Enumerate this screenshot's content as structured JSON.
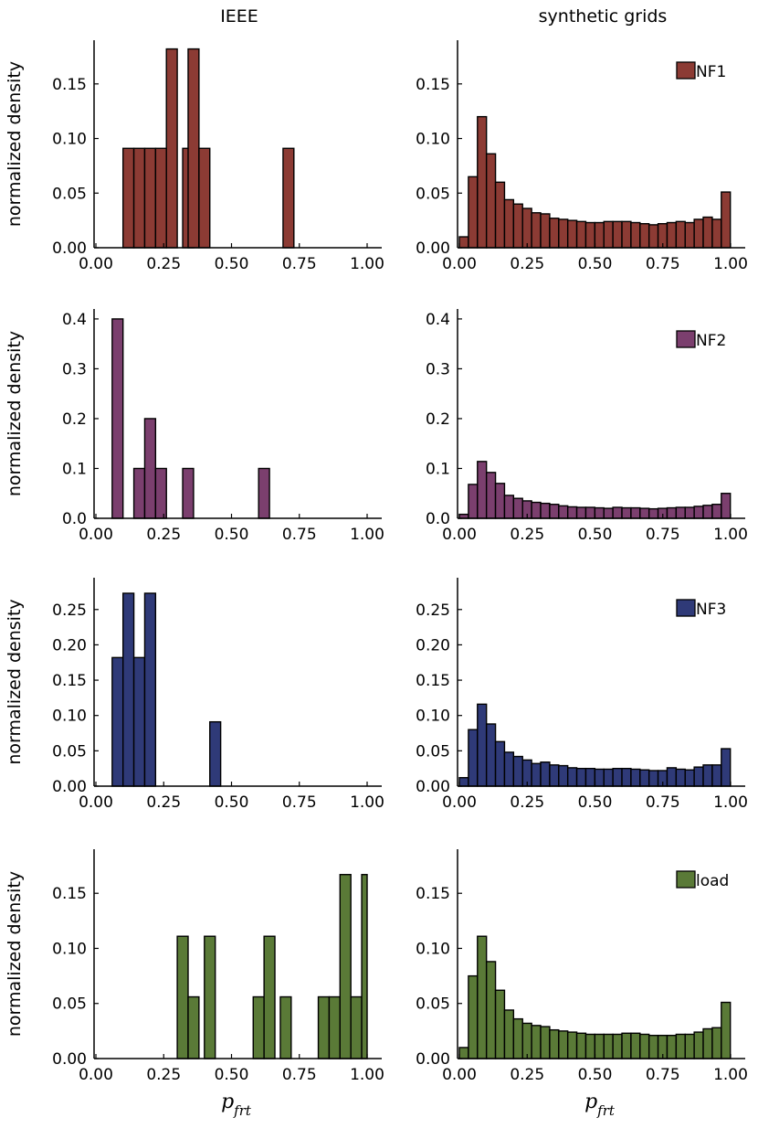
{
  "figure": {
    "column_titles": [
      "IEEE",
      "synthetic grids"
    ],
    "ylabel": "normalized density",
    "xlabel_main": "p",
    "xlabel_sub": "frt"
  },
  "chart_data": [
    {
      "type": "bar",
      "row": 0,
      "col": 0,
      "color": "#8c3b34",
      "xlim": [
        0,
        1
      ],
      "ylim": [
        0,
        0.19
      ],
      "xticks": [
        "0.00",
        "0.25",
        "0.50",
        "0.75",
        "1.00"
      ],
      "yticks": [
        "0.00",
        "0.05",
        "0.10",
        "0.15"
      ],
      "bin_width": 0.04,
      "bins": [
        [
          0.1,
          0.091
        ],
        [
          0.14,
          0.091
        ],
        [
          0.18,
          0.091
        ],
        [
          0.22,
          0.091
        ],
        [
          0.26,
          0.182
        ],
        [
          0.3,
          0
        ],
        [
          0.32,
          0.091
        ],
        [
          0.34,
          0.182
        ],
        [
          0.38,
          0.091
        ],
        [
          0.69,
          0.091
        ]
      ],
      "legend": ""
    },
    {
      "type": "bar",
      "row": 0,
      "col": 1,
      "color": "#8c3b34",
      "xlim": [
        0,
        1
      ],
      "ylim": [
        0,
        0.19
      ],
      "xticks": [
        "0.00",
        "0.25",
        "0.50",
        "0.75",
        "1.00"
      ],
      "yticks": [
        "0.00",
        "0.05",
        "0.10",
        "0.15"
      ],
      "bin_width": 0.0333,
      "values": [
        0.01,
        0.065,
        0.12,
        0.086,
        0.06,
        0.044,
        0.04,
        0.036,
        0.032,
        0.031,
        0.027,
        0.026,
        0.025,
        0.024,
        0.023,
        0.023,
        0.024,
        0.024,
        0.024,
        0.023,
        0.022,
        0.021,
        0.022,
        0.023,
        0.024,
        0.023,
        0.026,
        0.028,
        0.026,
        0.051
      ],
      "legend": "NF1"
    },
    {
      "type": "bar",
      "row": 1,
      "col": 0,
      "color": "#7b3f6e",
      "xlim": [
        0,
        1
      ],
      "ylim": [
        0,
        0.42
      ],
      "xticks": [
        "0.00",
        "0.25",
        "0.50",
        "0.75",
        "1.00"
      ],
      "yticks": [
        "0.0",
        "0.1",
        "0.2",
        "0.3",
        "0.4"
      ],
      "bin_width": 0.04,
      "bins": [
        [
          0.06,
          0.4
        ],
        [
          0.14,
          0.1
        ],
        [
          0.18,
          0.2
        ],
        [
          0.22,
          0.1
        ],
        [
          0.32,
          0.1
        ],
        [
          0.6,
          0.1
        ]
      ],
      "legend": ""
    },
    {
      "type": "bar",
      "row": 1,
      "col": 1,
      "color": "#7b3f6e",
      "xlim": [
        0,
        1
      ],
      "ylim": [
        0,
        0.42
      ],
      "xticks": [
        "0.00",
        "0.25",
        "0.50",
        "0.75",
        "1.00"
      ],
      "yticks": [
        "0.0",
        "0.1",
        "0.2",
        "0.3",
        "0.4"
      ],
      "bin_width": 0.0333,
      "values": [
        0.008,
        0.068,
        0.114,
        0.092,
        0.07,
        0.046,
        0.04,
        0.035,
        0.032,
        0.03,
        0.028,
        0.025,
        0.023,
        0.022,
        0.022,
        0.021,
        0.02,
        0.022,
        0.021,
        0.021,
        0.02,
        0.019,
        0.02,
        0.021,
        0.022,
        0.022,
        0.024,
        0.026,
        0.028,
        0.05
      ],
      "legend": "NF2"
    },
    {
      "type": "bar",
      "row": 2,
      "col": 0,
      "color": "#2f3a78",
      "xlim": [
        0,
        1
      ],
      "ylim": [
        0,
        0.295
      ],
      "xticks": [
        "0.00",
        "0.25",
        "0.50",
        "0.75",
        "1.00"
      ],
      "yticks": [
        "0.00",
        "0.05",
        "0.10",
        "0.15",
        "0.20",
        "0.25"
      ],
      "bin_width": 0.04,
      "bins": [
        [
          0.06,
          0.182
        ],
        [
          0.1,
          0.273
        ],
        [
          0.14,
          0.182
        ],
        [
          0.18,
          0.273
        ],
        [
          0.42,
          0.091
        ]
      ],
      "legend": ""
    },
    {
      "type": "bar",
      "row": 2,
      "col": 1,
      "color": "#2f3a78",
      "xlim": [
        0,
        1
      ],
      "ylim": [
        0,
        0.295
      ],
      "xticks": [
        "0.00",
        "0.25",
        "0.50",
        "0.75",
        "1.00"
      ],
      "yticks": [
        "0.00",
        "0.05",
        "0.10",
        "0.15",
        "0.20",
        "0.25"
      ],
      "bin_width": 0.0333,
      "values": [
        0.012,
        0.08,
        0.116,
        0.088,
        0.063,
        0.048,
        0.042,
        0.037,
        0.032,
        0.034,
        0.03,
        0.029,
        0.026,
        0.025,
        0.025,
        0.024,
        0.024,
        0.025,
        0.025,
        0.024,
        0.023,
        0.022,
        0.022,
        0.026,
        0.024,
        0.023,
        0.027,
        0.03,
        0.03,
        0.053
      ],
      "legend": "NF3"
    },
    {
      "type": "bar",
      "row": 3,
      "col": 0,
      "color": "#5a7a37",
      "xlim": [
        0,
        1
      ],
      "ylim": [
        0,
        0.19
      ],
      "xticks": [
        "0.00",
        "0.25",
        "0.50",
        "0.75",
        "1.00"
      ],
      "yticks": [
        "0.00",
        "0.05",
        "0.10",
        "0.15"
      ],
      "bin_width": 0.04,
      "bins": [
        [
          0.3,
          0.111
        ],
        [
          0.34,
          0.056
        ],
        [
          0.4,
          0.111
        ],
        [
          0.58,
          0.056
        ],
        [
          0.62,
          0.111
        ],
        [
          0.68,
          0.056
        ],
        [
          0.82,
          0.056
        ],
        [
          0.86,
          0.056
        ],
        [
          0.9,
          0.167
        ],
        [
          0.94,
          0.056
        ],
        [
          0.98,
          0.167
        ]
      ],
      "legend": ""
    },
    {
      "type": "bar",
      "row": 3,
      "col": 1,
      "color": "#5a7a37",
      "xlim": [
        0,
        1
      ],
      "ylim": [
        0,
        0.19
      ],
      "xticks": [
        "0.00",
        "0.25",
        "0.50",
        "0.75",
        "1.00"
      ],
      "yticks": [
        "0.00",
        "0.05",
        "0.10",
        "0.15"
      ],
      "bin_width": 0.0333,
      "values": [
        0.01,
        0.075,
        0.111,
        0.088,
        0.062,
        0.044,
        0.036,
        0.032,
        0.03,
        0.029,
        0.026,
        0.025,
        0.024,
        0.023,
        0.022,
        0.022,
        0.022,
        0.022,
        0.023,
        0.023,
        0.022,
        0.021,
        0.021,
        0.021,
        0.022,
        0.022,
        0.024,
        0.027,
        0.028,
        0.051
      ],
      "legend": "load"
    }
  ]
}
